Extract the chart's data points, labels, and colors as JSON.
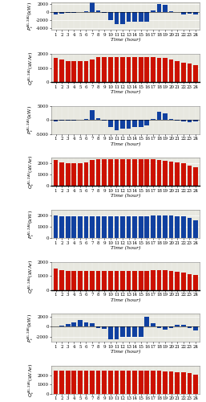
{
  "hours": [
    1,
    2,
    3,
    4,
    5,
    6,
    7,
    8,
    9,
    10,
    11,
    12,
    13,
    14,
    15,
    16,
    17,
    18,
    19,
    20,
    21,
    22,
    23,
    24
  ],
  "panel1_P": [
    -700,
    -400,
    -200,
    -150,
    -100,
    200,
    2500,
    400,
    -300,
    -2000,
    -3000,
    -3000,
    -2500,
    -2500,
    -2500,
    -2500,
    300,
    2000,
    1800,
    200,
    -100,
    -700,
    -500,
    -700
  ],
  "panel1_Q": [
    1700,
    1600,
    1500,
    1500,
    1500,
    1500,
    1600,
    1800,
    1800,
    1800,
    1800,
    1800,
    1800,
    1800,
    1800,
    1800,
    1800,
    1750,
    1700,
    1600,
    1500,
    1400,
    1300,
    1200
  ],
  "panel1_P_ylim": [
    -4500,
    2500
  ],
  "panel1_Q_ylim": [
    0,
    2000
  ],
  "panel1_P_yticks": [
    -4000,
    -2000,
    0,
    2000
  ],
  "panel1_Q_yticks": [
    0,
    1000,
    2000
  ],
  "panel1_P_ylabel": "$P_t^{A_1,2A_2}$(kW)",
  "panel1_Q_ylabel": "$Q_t^{A_1,2A_2}$(kVAr)",
  "panel2_P": [
    -400,
    -300,
    -200,
    -100,
    -50,
    400,
    3500,
    700,
    -300,
    -2500,
    -3500,
    -3000,
    -3000,
    -2500,
    -2500,
    -2000,
    500,
    3000,
    2500,
    400,
    -100,
    -400,
    -700,
    -400
  ],
  "panel2_Q": [
    2300,
    2100,
    2050,
    2050,
    2050,
    2100,
    2300,
    2400,
    2400,
    2400,
    2400,
    2400,
    2400,
    2400,
    2400,
    2400,
    2400,
    2300,
    2250,
    2200,
    2100,
    2000,
    1800,
    1700
  ],
  "panel2_P_ylim": [
    -5000,
    5000
  ],
  "panel2_Q_ylim": [
    0,
    2500
  ],
  "panel2_P_yticks": [
    -5000,
    0,
    5000
  ],
  "panel2_Q_yticks": [
    0,
    1000,
    2000
  ],
  "panel2_P_ylabel": "$P_t^{A_1,2A_3}$(kW)",
  "panel2_Q_ylabel": "$Q_t^{A_1,2A_3}$(kVAr)",
  "panel3_P": [
    2000,
    1900,
    1900,
    1900,
    1900,
    1900,
    1900,
    1900,
    1900,
    1900,
    1900,
    1900,
    1900,
    1900,
    1900,
    1900,
    2000,
    2000,
    2000,
    2000,
    1900,
    1900,
    1800,
    1600
  ],
  "panel3_Q": [
    1500,
    1400,
    1350,
    1350,
    1350,
    1350,
    1350,
    1350,
    1350,
    1350,
    1350,
    1350,
    1350,
    1350,
    1350,
    1350,
    1400,
    1400,
    1400,
    1350,
    1300,
    1250,
    1150,
    1050
  ],
  "panel3_P_ylim": [
    0,
    2500
  ],
  "panel3_Q_ylim": [
    0,
    2000
  ],
  "panel3_P_yticks": [
    0,
    1000,
    2000
  ],
  "panel3_Q_yticks": [
    0,
    1000,
    2000
  ],
  "panel3_P_ylabel": "$P_t^{A_1,2A_4}$(kW)",
  "panel3_Q_ylabel": "$Q_t^{A_1,2A_4}$(kVAr)",
  "panel4_P": [
    100,
    200,
    500,
    800,
    1300,
    900,
    600,
    -300,
    -400,
    -2500,
    -2500,
    -2000,
    -2000,
    -2000,
    -2000,
    2000,
    600,
    -300,
    -600,
    -300,
    300,
    400,
    -200,
    -700
  ],
  "panel4_Q": [
    2500,
    2500,
    2500,
    2500,
    2500,
    2500,
    2500,
    2500,
    2500,
    2500,
    2500,
    2500,
    2500,
    2500,
    2500,
    2500,
    2500,
    2500,
    2400,
    2400,
    2300,
    2300,
    2200,
    2100
  ],
  "panel4_P_ylim": [
    -3000,
    2500
  ],
  "panel4_Q_ylim": [
    0,
    3000
  ],
  "panel4_P_yticks": [
    -2000,
    0,
    2000
  ],
  "panel4_Q_yticks": [
    0,
    1000,
    2000
  ],
  "panel4_P_ylabel": "$P_t^{A_1,2A_5}$(kW)",
  "panel4_Q_ylabel": "$Q_t^{A_1,2A_5}$(kVAr)",
  "blue_color": "#1040a0",
  "red_color": "#cc1100",
  "bg_color": "#e8e8e0",
  "xlabel": "Time (hour)",
  "bar_width": 0.75,
  "tick_fontsize": 4.0,
  "label_fontsize": 4.5
}
